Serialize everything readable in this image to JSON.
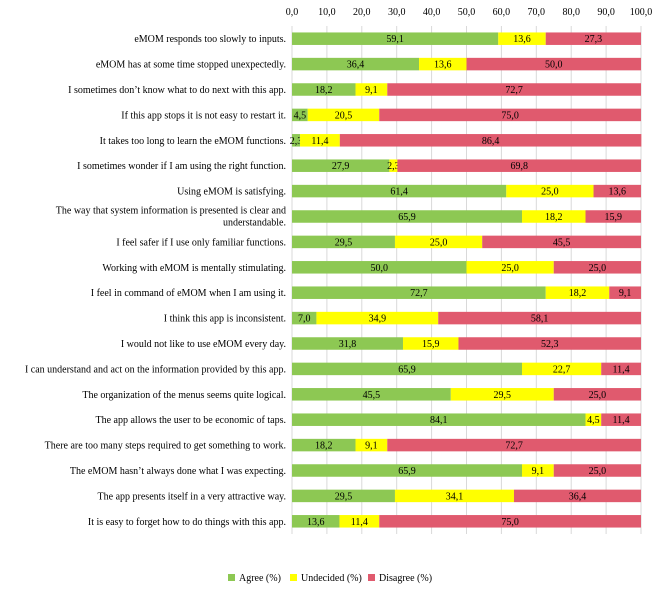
{
  "chart_data": {
    "type": "bar",
    "orientation": "horizontal",
    "stacked": true,
    "xlim": [
      0,
      100
    ],
    "x_ticks": [
      "0,0",
      "10,0",
      "20,0",
      "30,0",
      "40,0",
      "50,0",
      "60,0",
      "70,0",
      "80,0",
      "90,0",
      "100,0"
    ],
    "x_tick_values": [
      0,
      10,
      20,
      30,
      40,
      50,
      60,
      70,
      80,
      90,
      100
    ],
    "x_axis_position": "top",
    "grid": true,
    "legend_placement": "bottom",
    "categories": [
      [
        "eMOM responds too slowly to inputs."
      ],
      [
        "eMOM has at some time stopped unexpectedly."
      ],
      [
        "I sometimes don’t know what to do next with this app."
      ],
      [
        "If this app stops it is not easy to restart it."
      ],
      [
        "It takes too long to learn the eMOM functions."
      ],
      [
        "I sometimes wonder if I am using the right function."
      ],
      [
        "Using eMOM is satisfying."
      ],
      [
        "The way that system information is presented is clear and",
        "understandable."
      ],
      [
        "I feel safer if I use only familiar functions."
      ],
      [
        "Working with eMOM is mentally stimulating."
      ],
      [
        "I feel in command of eMOM when I am using it."
      ],
      [
        "I think this app is inconsistent."
      ],
      [
        "I would not like to use eMOM every day."
      ],
      [
        "I can understand and act on the information provided by this app."
      ],
      [
        "The organization of the menus seems quite logical."
      ],
      [
        "The app allows the user to be economic of taps."
      ],
      [
        "There are too many steps required to get something to work."
      ],
      [
        "The eMOM hasn’t always done what I was expecting."
      ],
      [
        "The app presents itself in a very attractive way."
      ],
      [
        "It is easy to forget how to do things with this app."
      ]
    ],
    "series": [
      {
        "name": "Agree (%)",
        "color": "#8dc853",
        "values": [
          59.1,
          36.4,
          18.2,
          4.5,
          2.3,
          27.9,
          61.4,
          65.9,
          29.5,
          50.0,
          72.7,
          7.0,
          31.8,
          65.9,
          45.5,
          84.1,
          18.2,
          65.9,
          29.5,
          13.6
        ],
        "labels": [
          "59,1",
          "36,4",
          "18,2",
          "4,5",
          "2,3",
          "27,9",
          "61,4",
          "65,9",
          "29,5",
          "50,0",
          "72,7",
          "7,0",
          "31,8",
          "65,9",
          "45,5",
          "84,1",
          "18,2",
          "65,9",
          "29,5",
          "13,6"
        ]
      },
      {
        "name": "Undecided (%)",
        "color": "#ffff00",
        "values": [
          13.6,
          13.6,
          9.1,
          20.5,
          11.4,
          2.3,
          25.0,
          18.2,
          25.0,
          25.0,
          18.2,
          34.9,
          15.9,
          22.7,
          29.5,
          4.5,
          9.1,
          9.1,
          34.1,
          11.4
        ],
        "labels": [
          "13,6",
          "13,6",
          "9,1",
          "20,5",
          "11,4",
          "2,3",
          "25,0",
          "18,2",
          "25,0",
          "25,0",
          "18,2",
          "34,9",
          "15,9",
          "22,7",
          "29,5",
          "4,5",
          "9,1",
          "9,1",
          "34,1",
          "11,4"
        ]
      },
      {
        "name": "Disagree (%)",
        "color": "#e05a6e",
        "values": [
          27.3,
          50.0,
          72.7,
          75.0,
          86.4,
          69.8,
          13.6,
          15.9,
          45.5,
          25.0,
          9.1,
          58.1,
          52.3,
          11.4,
          25.0,
          11.4,
          72.7,
          25.0,
          36.4,
          75.0
        ],
        "labels": [
          "27,3",
          "50,0",
          "72,7",
          "75,0",
          "86,4",
          "69,8",
          "13,6",
          "15,9",
          "45,5",
          "25,0",
          "9,1",
          "58,1",
          "52,3",
          "11,4",
          "25,0",
          "11,4",
          "72,7",
          "25,0",
          "36,4",
          "75,0"
        ]
      }
    ]
  }
}
